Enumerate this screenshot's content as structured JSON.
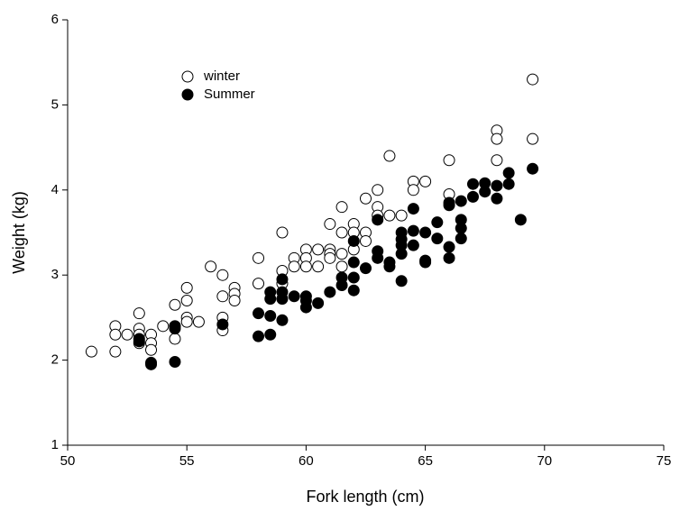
{
  "chart_data": {
    "type": "scatter",
    "xlabel": "Fork length (cm)",
    "ylabel": "Weight (kg)",
    "xlim": [
      50,
      75
    ],
    "xticks": [
      50,
      55,
      60,
      65,
      70,
      75
    ],
    "ylim": [
      1,
      6
    ],
    "yticks": [
      1,
      2,
      3,
      4,
      5,
      6
    ],
    "legend": "upper left",
    "series": [
      {
        "name": "winter",
        "color": "#000000",
        "marker": "open",
        "x": [
          51,
          52,
          52,
          52,
          52.5,
          53,
          53,
          53,
          53,
          53.5,
          53.5,
          53.5,
          54,
          54.5,
          54.5,
          54.5,
          55,
          55,
          55,
          55,
          55.5,
          56,
          56.5,
          56.5,
          56.5,
          56.5,
          57,
          57,
          57,
          58,
          58,
          59,
          59,
          59,
          59.5,
          59.5,
          60,
          60,
          60,
          60.5,
          60.5,
          61,
          61,
          61,
          61,
          61.5,
          61.5,
          61.5,
          61.5,
          62,
          62,
          62,
          62.5,
          62.5,
          62.5,
          63,
          63,
          63,
          63.5,
          63.5,
          64,
          64.5,
          64.5,
          65,
          66,
          66,
          68,
          68,
          68,
          69.5,
          69.5
        ],
        "y": [
          2.1,
          2.4,
          2.3,
          2.1,
          2.3,
          2.55,
          2.37,
          2.3,
          2.2,
          2.3,
          2.2,
          2.12,
          2.4,
          2.65,
          2.4,
          2.25,
          2.85,
          2.7,
          2.5,
          2.45,
          2.45,
          3.1,
          3.0,
          2.75,
          2.5,
          2.35,
          2.85,
          2.78,
          2.7,
          3.2,
          2.9,
          3.5,
          3.05,
          2.9,
          3.2,
          3.1,
          3.3,
          3.2,
          3.1,
          3.3,
          3.1,
          3.6,
          3.3,
          3.25,
          3.2,
          3.8,
          3.5,
          3.25,
          3.1,
          3.6,
          3.5,
          3.3,
          3.9,
          3.5,
          3.4,
          4.0,
          3.8,
          3.7,
          4.4,
          3.7,
          3.7,
          4.1,
          4.0,
          4.1,
          4.35,
          3.95,
          4.7,
          4.6,
          4.35,
          5.3,
          4.6
        ]
      },
      {
        "name": "Summer",
        "color": "#000000",
        "marker": "filled",
        "x": [
          53,
          53,
          53.5,
          53.5,
          54.5,
          54.5,
          54.5,
          56.5,
          58,
          58,
          58.5,
          58.5,
          58.5,
          58.5,
          59,
          59,
          59,
          59,
          59.5,
          60,
          60,
          60,
          60.5,
          61,
          61.5,
          61.5,
          62,
          62,
          62,
          62,
          62.5,
          63,
          63,
          63,
          63.5,
          63.5,
          64,
          64,
          64,
          64,
          64,
          64.5,
          64.5,
          64.5,
          65,
          65,
          65,
          65.5,
          65.5,
          66,
          66,
          66,
          66,
          66.5,
          66.5,
          66.5,
          66.5,
          67,
          67,
          67.5,
          67.5,
          68,
          68,
          68.5,
          68.5,
          69,
          69.5
        ],
        "y": [
          2.25,
          2.22,
          1.97,
          1.95,
          2.4,
          2.37,
          1.98,
          2.42,
          2.55,
          2.28,
          2.8,
          2.72,
          2.52,
          2.3,
          2.95,
          2.8,
          2.72,
          2.47,
          2.75,
          2.75,
          2.7,
          2.62,
          2.67,
          2.8,
          2.97,
          2.88,
          3.4,
          3.15,
          2.97,
          2.82,
          3.08,
          3.65,
          3.28,
          3.2,
          3.15,
          3.1,
          3.5,
          3.42,
          3.35,
          3.25,
          2.93,
          3.78,
          3.52,
          3.35,
          3.5,
          3.17,
          3.15,
          3.62,
          3.43,
          3.85,
          3.82,
          3.33,
          3.2,
          3.87,
          3.65,
          3.55,
          3.43,
          4.07,
          3.92,
          4.08,
          3.98,
          4.05,
          3.9,
          4.2,
          4.07,
          3.65,
          4.25
        ]
      }
    ]
  }
}
